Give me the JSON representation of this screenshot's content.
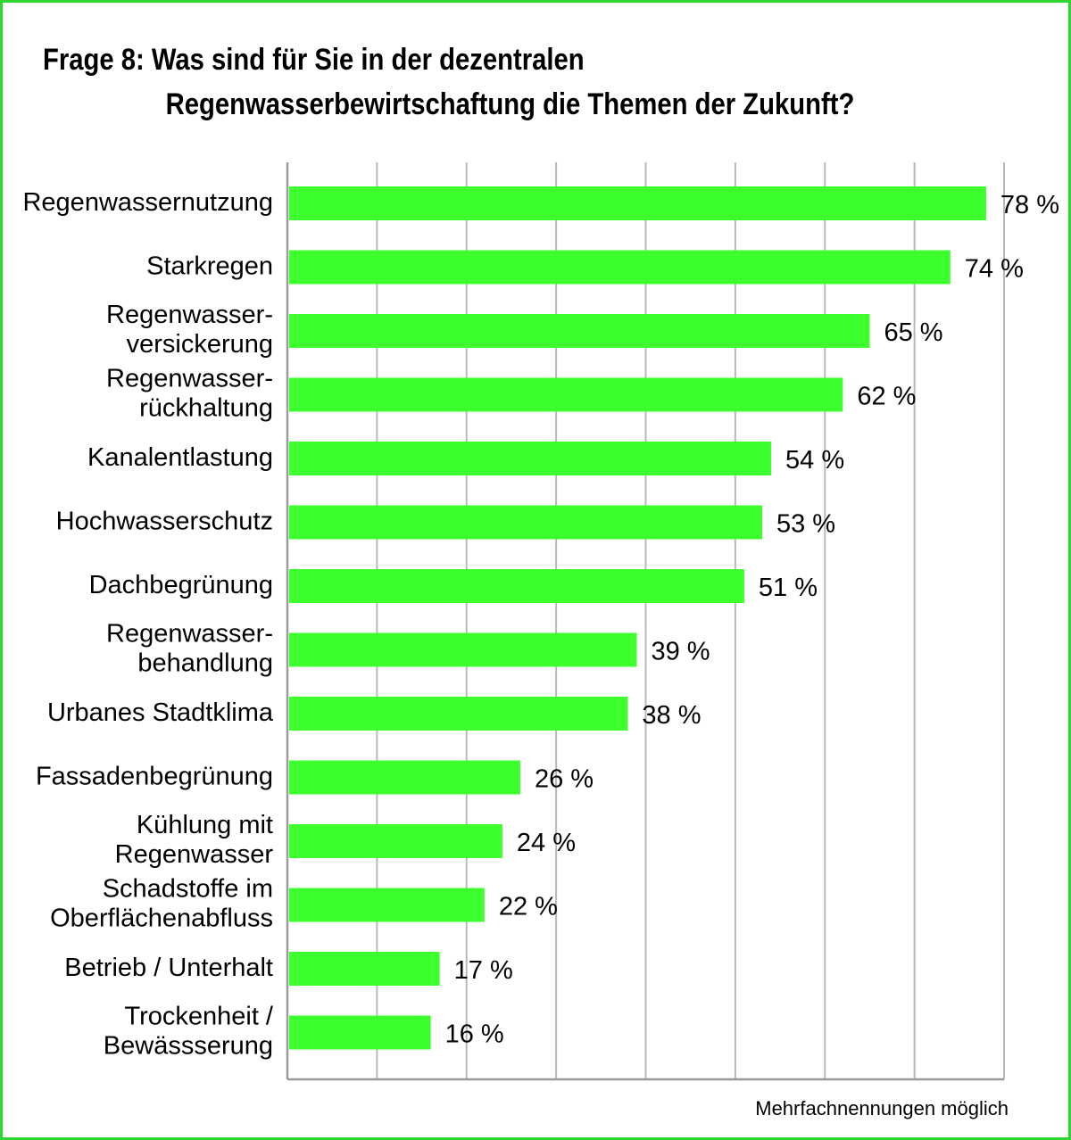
{
  "chart_data": {
    "type": "bar",
    "orientation": "horizontal",
    "title_line1": "Frage 8: Was sind für Sie in der dezentralen",
    "title_line2": "Regenwasserbewirtschaftung die Themen der Zukunft?",
    "note": "Mehrfachnennungen möglich",
    "categories": [
      [
        "Regenwassernutzung"
      ],
      [
        "Starkregen"
      ],
      [
        "Regenwasser-",
        "versickerung"
      ],
      [
        "Regenwasser-",
        "rückhaltung"
      ],
      [
        "Kanalentlastung"
      ],
      [
        "Hochwasserschutz"
      ],
      [
        "Dachbegrünung"
      ],
      [
        "Regenwasser-",
        "behandlung"
      ],
      [
        "Urbanes Stadtklima"
      ],
      [
        "Fassadenbegrünung"
      ],
      [
        "Kühlung mit",
        "Regenwasser"
      ],
      [
        "Schadstoffe im",
        "Oberflächenabfluss"
      ],
      [
        "Betrieb / Unterhalt"
      ],
      [
        "Trockenheit /",
        "Bewässserung"
      ]
    ],
    "values": [
      78,
      74,
      65,
      62,
      54,
      53,
      51,
      39,
      38,
      26,
      24,
      22,
      17,
      16
    ],
    "value_labels": [
      "78 %",
      "74 %",
      "65 %",
      "62 %",
      "54 %",
      "53 %",
      "51 %",
      "39 %",
      "38 %",
      "26 %",
      "24 %",
      "22 %",
      "17 %",
      "16 %"
    ],
    "xlim": [
      0,
      80
    ],
    "grid": true,
    "bar_color": "#3dff2e",
    "frame_color": "#2fd62f"
  }
}
